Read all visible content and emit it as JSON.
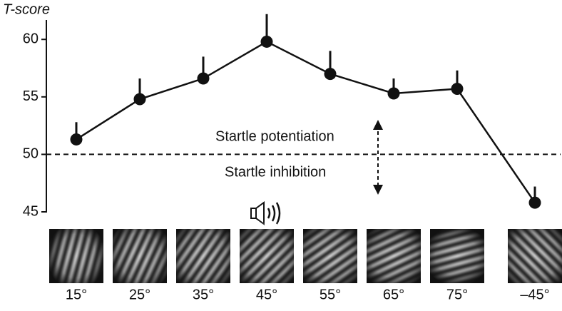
{
  "chart_data": {
    "type": "line",
    "y_label": "T-score",
    "categories": [
      "15°",
      "25°",
      "35°",
      "45°",
      "55°",
      "65°",
      "75°",
      "–45°"
    ],
    "series": [
      {
        "name": null,
        "color": "#111111",
        "values": [
          51.3,
          54.8,
          56.6,
          59.8,
          57.0,
          55.3,
          55.7,
          45.8
        ],
        "errors": [
          1.5,
          1.8,
          1.9,
          2.4,
          2.0,
          1.3,
          1.6,
          1.4
        ]
      }
    ],
    "ylim": [
      45,
      62
    ],
    "yticks": [
      45,
      50,
      55,
      60
    ],
    "reference_line": 50,
    "annotations": [
      "Startle potentiation",
      "Startle inhibition"
    ]
  }
}
